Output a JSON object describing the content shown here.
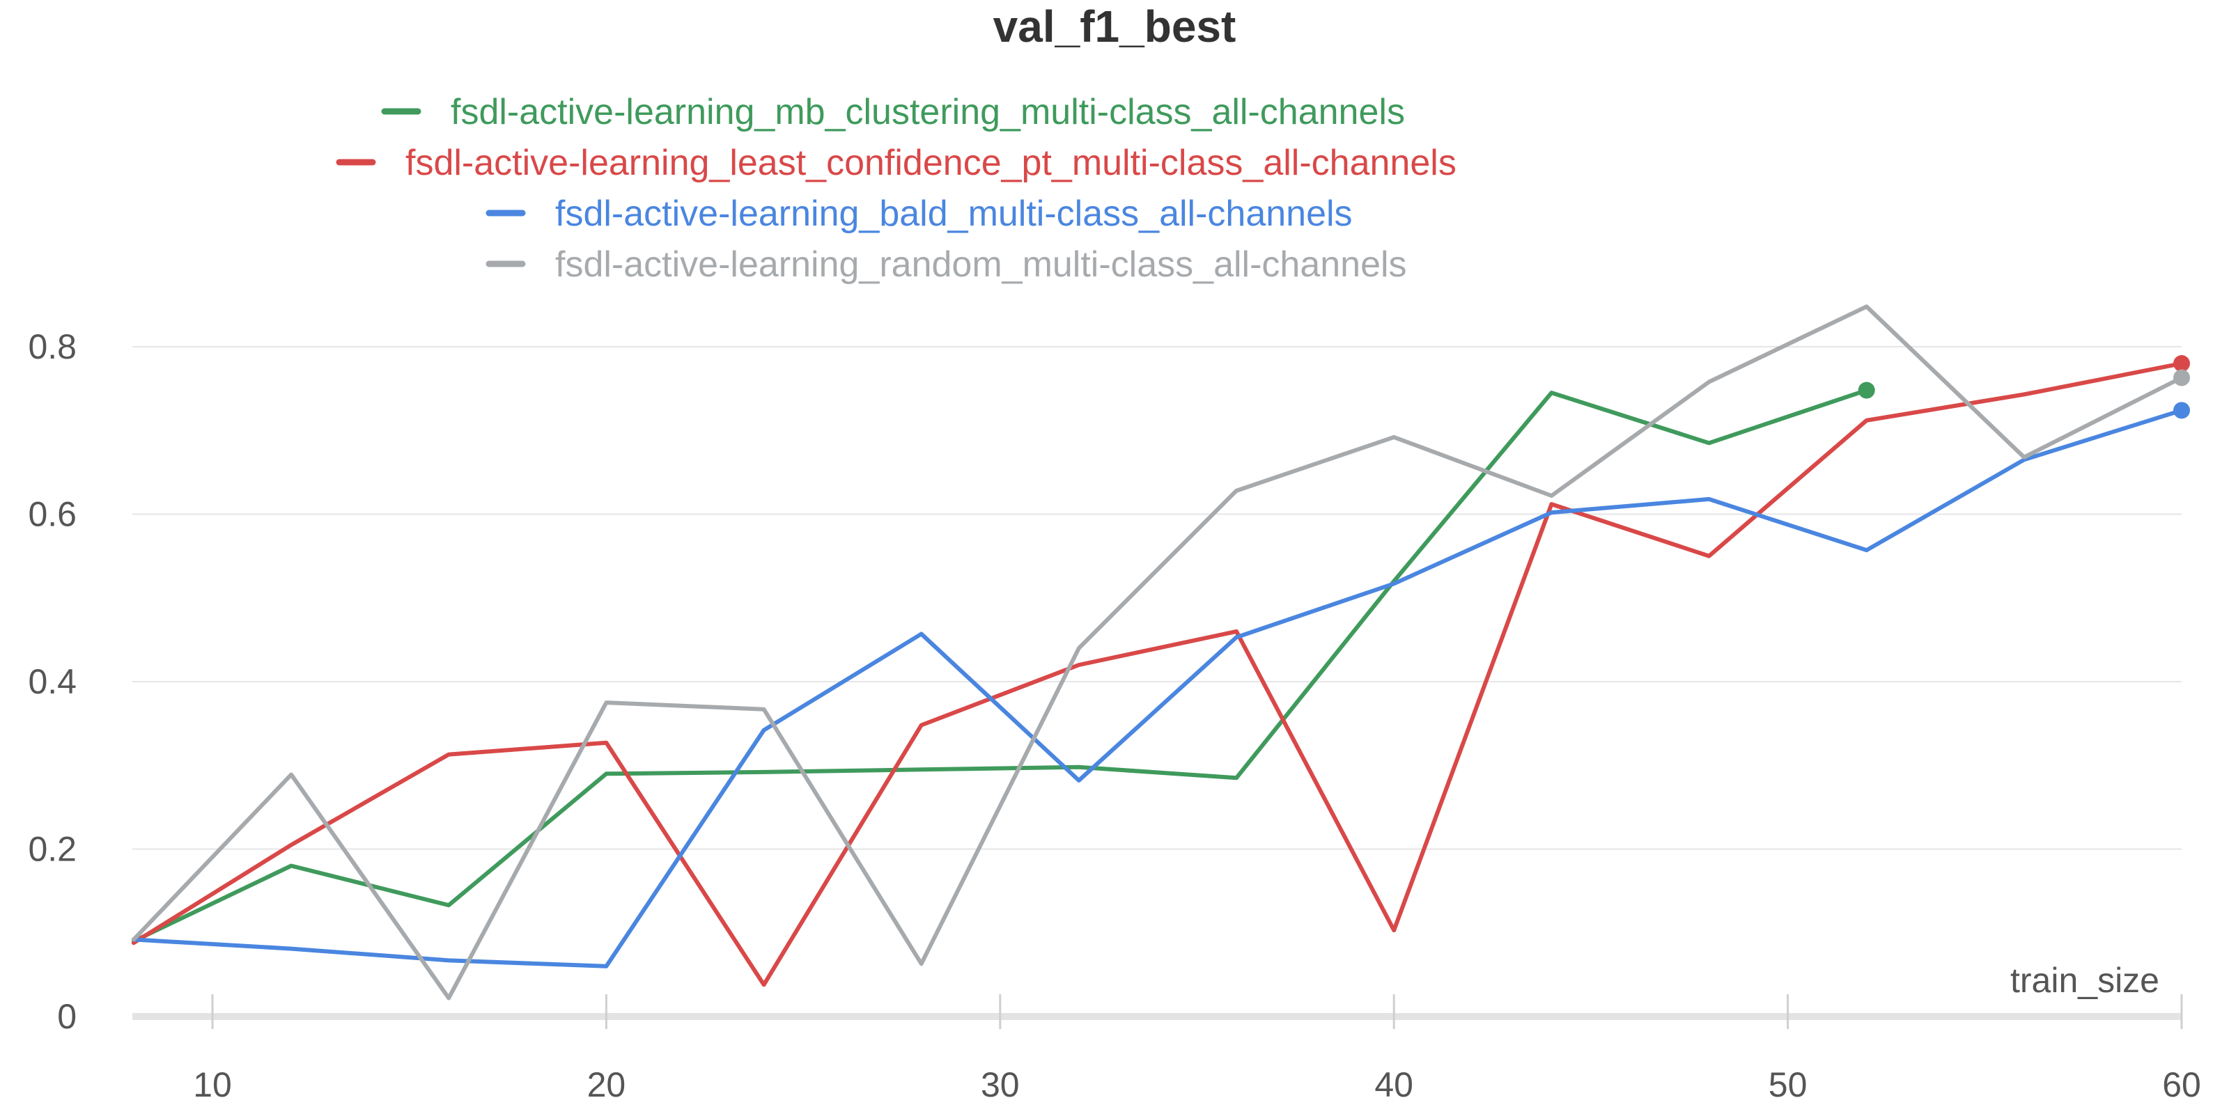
{
  "chart_data": {
    "type": "line",
    "title": "val_f1_best",
    "xlabel": "train_size",
    "ylabel": "",
    "xlim": [
      8,
      60
    ],
    "ylim": [
      0,
      0.85
    ],
    "x_ticks": [
      10,
      20,
      30,
      40,
      50,
      60
    ],
    "y_ticks": [
      0,
      0.2,
      0.4,
      0.6,
      0.8
    ],
    "x_tick_labels": [
      "10",
      "20",
      "30",
      "40",
      "50",
      "60"
    ],
    "y_tick_labels": [
      "0",
      "0.2",
      "0.4",
      "0.6",
      "0.8"
    ],
    "grid": true,
    "legend_position": "top",
    "series": [
      {
        "name": "fsdl-active-learning_mb_clustering_multi-class_all-channels",
        "color": "#3f9a5c",
        "x": [
          8,
          12,
          16,
          20,
          24,
          28,
          32,
          36,
          40,
          44,
          48,
          52
        ],
        "y": [
          0.09,
          0.18,
          0.133,
          0.29,
          0.292,
          0.295,
          0.298,
          0.285,
          0.52,
          0.745,
          0.685,
          0.748
        ]
      },
      {
        "name": "fsdl-active-learning_least_confidence_pt_multi-class_all-channels",
        "color": "#d94848",
        "x": [
          8,
          12,
          16,
          20,
          24,
          28,
          32,
          36,
          40,
          44,
          48,
          52,
          56,
          60
        ],
        "y": [
          0.088,
          0.205,
          0.313,
          0.327,
          0.038,
          0.348,
          0.42,
          0.46,
          0.103,
          0.612,
          0.55,
          0.712,
          0.743,
          0.78
        ]
      },
      {
        "name": "fsdl-active-learning_bald_multi-class_all-channels",
        "color": "#4a86e0",
        "x": [
          8,
          12,
          16,
          20,
          24,
          28,
          32,
          36,
          40,
          44,
          48,
          52,
          56,
          60
        ],
        "y": [
          0.092,
          0.081,
          0.067,
          0.06,
          0.342,
          0.457,
          0.282,
          0.453,
          0.517,
          0.602,
          0.618,
          0.557,
          0.665,
          0.724
        ]
      },
      {
        "name": "fsdl-active-learning_random_multi-class_all-channels",
        "color": "#a7aaad",
        "x": [
          8,
          12,
          16,
          20,
          24,
          28,
          32,
          36,
          40,
          44,
          48,
          52,
          56,
          60
        ],
        "y": [
          0.092,
          0.289,
          0.022,
          0.375,
          0.367,
          0.063,
          0.44,
          0.628,
          0.692,
          0.622,
          0.758,
          0.848,
          0.668,
          0.763
        ]
      }
    ]
  }
}
